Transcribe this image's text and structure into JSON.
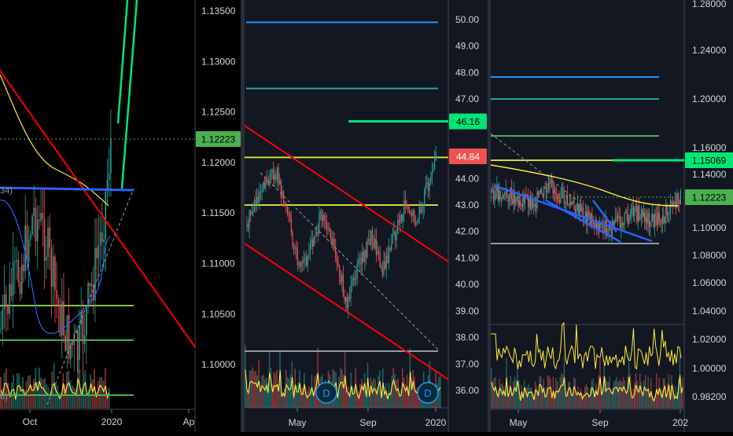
{
  "chart_data": [
    {
      "type": "line",
      "ylim": [
        1.0968,
        1.1365
      ],
      "yticks": [
        "1.13500",
        "1.13000",
        "1.12500",
        "1.12000",
        "1.11500",
        "1.11000",
        "1.10500",
        "1.10000"
      ],
      "xticks": [
        "Oct",
        "2020",
        "Ap"
      ],
      "last_price_label": "1.12223",
      "legend_fragments": [
        "34)",
        "6)"
      ],
      "colors": {
        "up": "#26a69a",
        "down": "#ef5350",
        "trend": "#ff0000",
        "channel": "#2962ff",
        "ma": "#ffeb3b",
        "arrow": "#00e676",
        "level": "#8bc34a",
        "price_tag": "#4caf50"
      }
    },
    {
      "type": "line",
      "ylim": [
        35.3,
        50.8
      ],
      "yticks": [
        "50.00",
        "49.00",
        "48.00",
        "47.00",
        "46.00",
        "45.00",
        "44.00",
        "43.00",
        "42.00",
        "41.00",
        "40.00",
        "39.00",
        "38.00",
        "37.00",
        "36.00"
      ],
      "xticks": [
        "May",
        "Sep",
        "2020"
      ],
      "target_label": "46.16",
      "last_price_label": "44.84",
      "event_badges": [
        "D",
        "D"
      ],
      "levels": [
        49.9,
        47.4,
        44.8,
        43.0
      ],
      "colors": {
        "up": "#26a69a",
        "down": "#ef5350",
        "channel": "#ff0000",
        "level_top": "#2196f3",
        "level_2": "#26a69a",
        "level_mid": "#cddc39",
        "target": "#00e676",
        "volume_ma": "#ffeb3b"
      }
    },
    {
      "type": "line",
      "ylim": [
        0.972,
        1.284
      ],
      "yticks": [
        "1.28000",
        "1.24000",
        "1.20000",
        "1.16000",
        "1.14000",
        "1.12000",
        "1.10000",
        "1.08000",
        "1.06000",
        "1.04000",
        "1.02000",
        "1.00000",
        "0.98200"
      ],
      "xticks": [
        "May",
        "Sep",
        "202"
      ],
      "target_label": "1.15069",
      "last_price_label": "1.12223",
      "levels": [
        1.218,
        1.198,
        1.174,
        1.1506,
        1.089
      ],
      "colors": {
        "up": "#26a69a",
        "down": "#ef5350",
        "channel": "#2962ff",
        "ma": "#ffeb3b",
        "target": "#00e676",
        "osc": "#ffeb3b"
      }
    }
  ]
}
